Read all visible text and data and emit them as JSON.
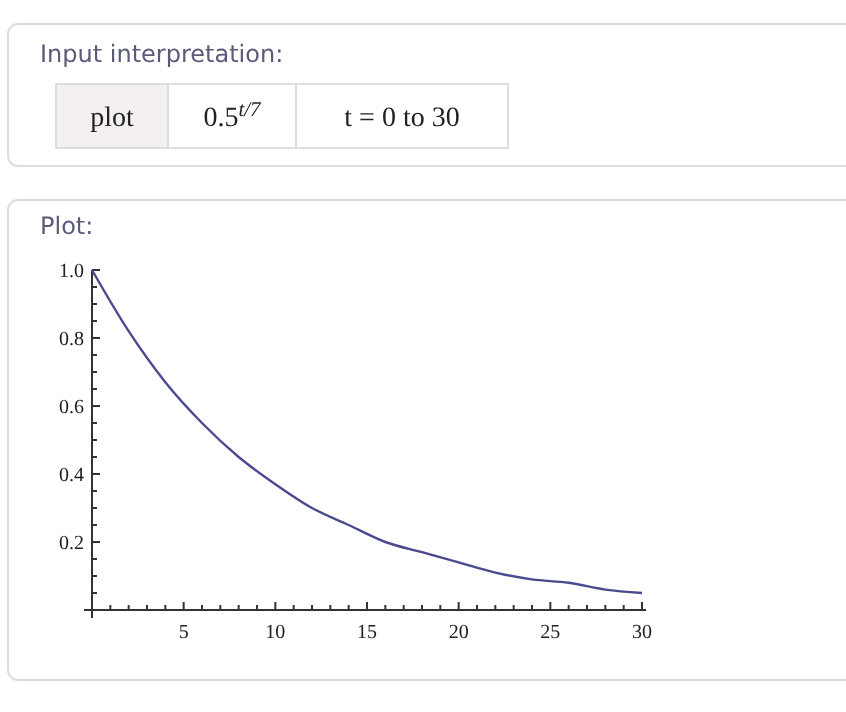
{
  "chart_data": {
    "type": "line",
    "title": "Plot:",
    "annotations": [
      "Input interpretation:",
      "plot",
      "0.5$^{t/7}$",
      "t = 0 to 30"
    ],
    "x": [
      0,
      2,
      4,
      6,
      8,
      10,
      12,
      14,
      16,
      18,
      20,
      22,
      24,
      26,
      28,
      30
    ],
    "series": [
      {
        "color": "#4b4a8f",
        "values": [
          1.0,
          0.82,
          0.67,
          0.55,
          0.45,
          0.37,
          0.3,
          0.25,
          0.2,
          0.17,
          0.14,
          0.11,
          0.09,
          0.08,
          0.06,
          0.05
        ]
      }
    ],
    "xlim": [
      0,
      30
    ],
    "ylim": [
      0,
      1
    ],
    "xticks": [
      {
        "value": 1,
        "label": null
      },
      {
        "value": 2,
        "label": null
      },
      {
        "value": 3,
        "label": null
      },
      {
        "value": 4,
        "label": null
      },
      5,
      {
        "value": 6,
        "label": null
      },
      {
        "value": 7,
        "label": null
      },
      {
        "value": 8,
        "label": null
      },
      {
        "value": 9,
        "label": null
      },
      10,
      {
        "value": 11,
        "label": null
      },
      {
        "value": 12,
        "label": null
      },
      {
        "value": 13,
        "label": null
      },
      {
        "value": 14,
        "label": null
      },
      15,
      {
        "value": 16,
        "label": null
      },
      {
        "value": 17,
        "label": null
      },
      {
        "value": 18,
        "label": null
      },
      {
        "value": 19,
        "label": null
      },
      20,
      {
        "value": 21,
        "label": null
      },
      {
        "value": 22,
        "label": null
      },
      {
        "value": 23,
        "label": null
      },
      {
        "value": 24,
        "label": null
      },
      25,
      {
        "value": 26,
        "label": null
      },
      {
        "value": 27,
        "label": null
      },
      {
        "value": 28,
        "label": null
      },
      {
        "value": 29,
        "label": null
      },
      30
    ],
    "yticks": [
      {
        "value": 0.05,
        "label": null
      },
      {
        "value": 0.1,
        "label": null
      },
      {
        "value": 0.15,
        "label": null
      },
      {
        "value": 0.2,
        "label": "0.2"
      },
      {
        "value": 0.25,
        "label": null
      },
      {
        "value": 0.3,
        "label": null
      },
      {
        "value": 0.35,
        "label": null
      },
      {
        "value": 0.4,
        "label": "0.4"
      },
      {
        "value": 0.45,
        "label": null
      },
      {
        "value": 0.5,
        "label": null
      },
      {
        "value": 0.55,
        "label": null
      },
      {
        "value": 0.6,
        "label": "0.6"
      },
      {
        "value": 0.65,
        "label": null
      },
      {
        "value": 0.7,
        "label": null
      },
      {
        "value": 0.75,
        "label": null
      },
      {
        "value": 0.8,
        "label": "0.8"
      },
      {
        "value": 0.85,
        "label": null
      },
      {
        "value": 0.9,
        "label": null
      },
      {
        "value": 0.95,
        "label": null
      },
      {
        "value": 1,
        "label": "1.0"
      }
    ],
    "grid": false,
    "marker": "none",
    "line_style": "solid"
  }
}
